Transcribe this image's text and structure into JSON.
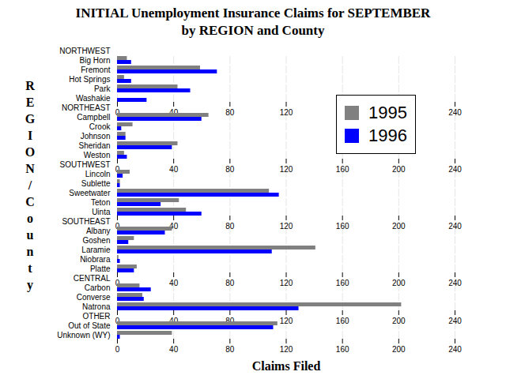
{
  "chart_data": {
    "type": "bar",
    "orientation": "horizontal",
    "title": "INITIAL Unemployment Insurance Claims for SEPTEMBER",
    "subtitle": "by REGION and County",
    "x_label": "Claims Filed",
    "y_label": "REGION/County",
    "categories": [
      "NORTHWEST",
      "Big Horn",
      "Fremont",
      "Hot Springs",
      "Park",
      "Washakie",
      "NORTHEAST",
      "Campbell",
      "Crook",
      "Johnson",
      "Sheridan",
      "Weston",
      "SOUTHWEST",
      "Lincoln",
      "Sublette",
      "Sweetwater",
      "Teton",
      "Uinta",
      "SOUTHEAST",
      "Albany",
      "Goshen",
      "Laramie",
      "Niobrara",
      "Platte",
      "CENTRAL",
      "Carbon",
      "Converse",
      "Natrona",
      "OTHER",
      "Out of State",
      "Unknown (WY)"
    ],
    "series": [
      {
        "name": "1995",
        "color": "#808080",
        "values": [
          null,
          7,
          59,
          5,
          43,
          0,
          null,
          65,
          11,
          6,
          43,
          5,
          null,
          9,
          2,
          108,
          44,
          49,
          null,
          39,
          12,
          141,
          1,
          14,
          null,
          16,
          18,
          202,
          null,
          114,
          39
        ]
      },
      {
        "name": "1996",
        "color": "#0000ff",
        "values": [
          null,
          10,
          71,
          10,
          52,
          21,
          null,
          60,
          3,
          6,
          39,
          7,
          null,
          4,
          2,
          115,
          31,
          60,
          null,
          34,
          8,
          110,
          2,
          12,
          null,
          24,
          19,
          129,
          null,
          111,
          2
        ]
      }
    ],
    "xlim": [
      0,
      240
    ],
    "xticks": [
      0,
      40,
      80,
      120,
      160,
      200,
      240
    ],
    "grid": true,
    "legend": "top-right"
  }
}
